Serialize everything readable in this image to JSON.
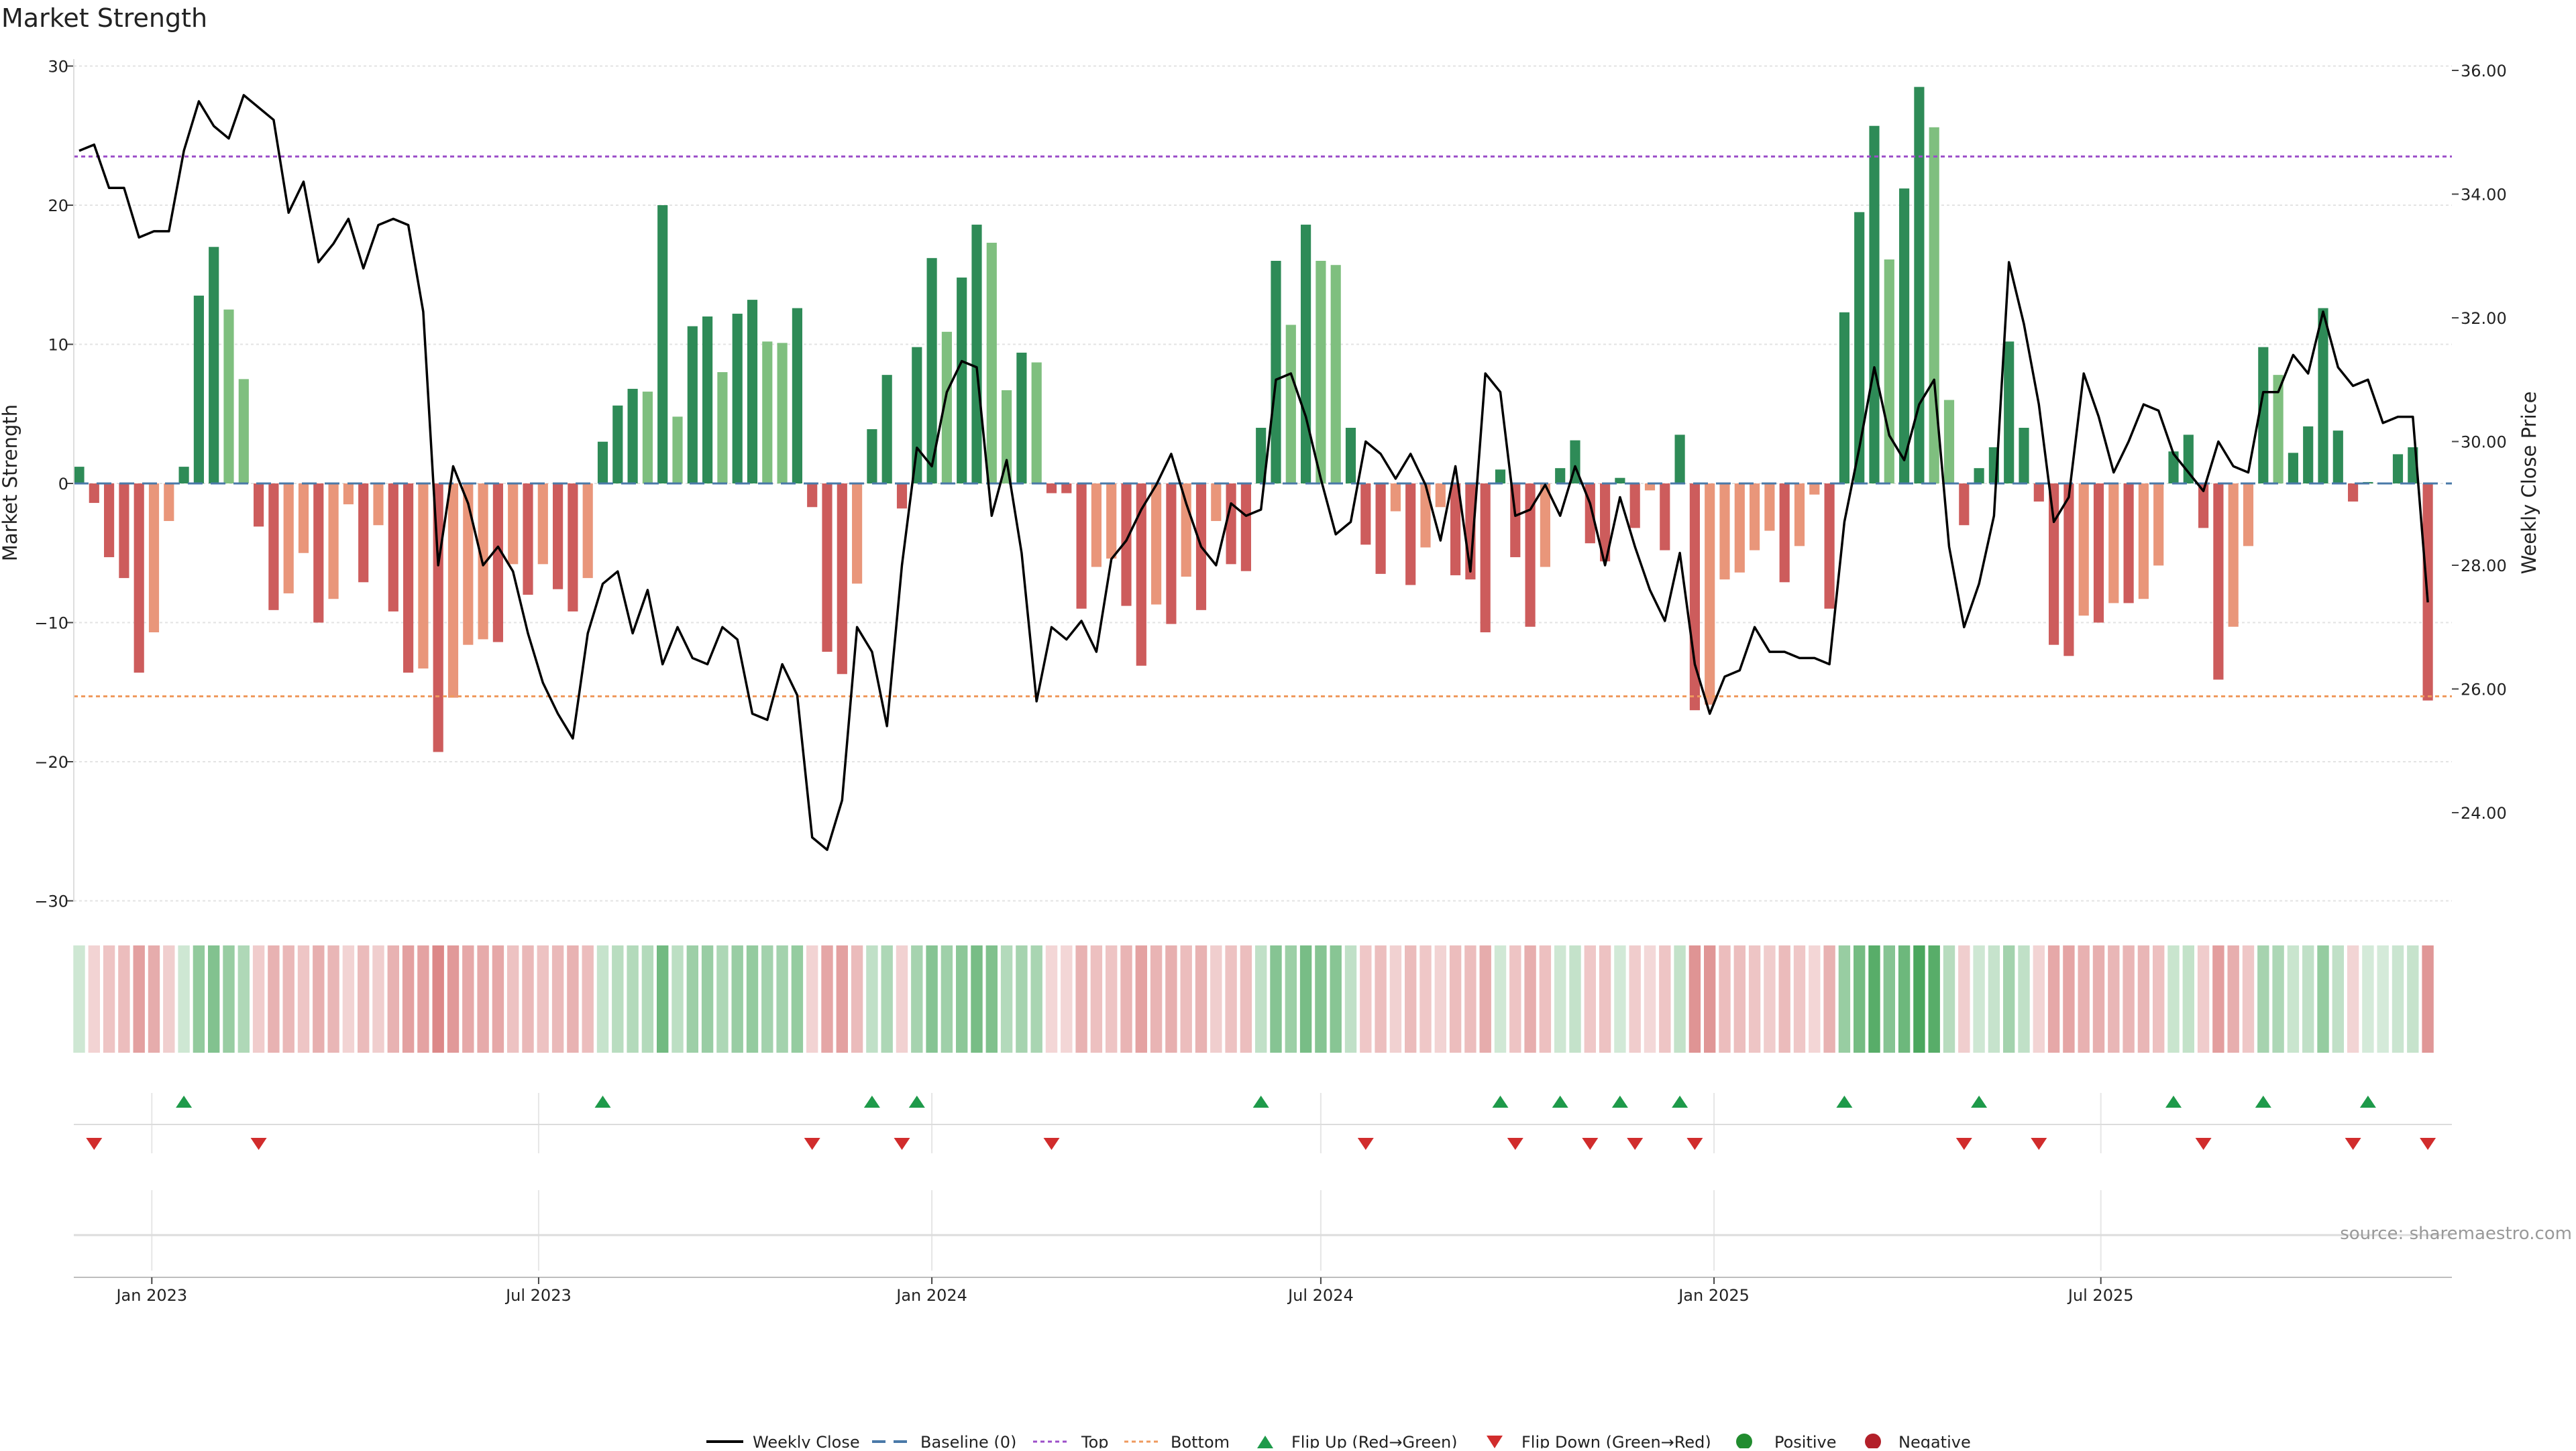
{
  "chart_data": {
    "type": "bar",
    "title": "Market Strength",
    "ylabel_left": "Market Strength",
    "ylabel_right": "Weekly Close Price",
    "y_left_lim": [
      -30,
      30
    ],
    "y_left_ticks": [
      "30",
      "20",
      "10",
      "0",
      "−10",
      "−20",
      "−30"
    ],
    "y_right_lim": [
      22.6,
      36.0
    ],
    "y_right_ticks": [
      "36.00",
      "34.00",
      "32.00",
      "30.00",
      "28.00",
      "26.00",
      "24.00"
    ],
    "x_ticks": [
      "Jan 2023",
      "Jul 2023",
      "Jan 2024",
      "Jul 2024",
      "Jan 2025",
      "Jul 2025"
    ],
    "x_start": "2022-11-28",
    "week_days": 7,
    "top_threshold": 23.5,
    "bottom_threshold": -15.3,
    "grid": true,
    "legend_position": "bottom-center",
    "legend": [
      "Weekly Close",
      "Baseline (0)",
      "Top",
      "Bottom",
      "Flip Up (Red→Green)",
      "Flip Down (Green→Red)",
      "Positive",
      "Negative"
    ],
    "source": "source: sharemaestro.com",
    "series": [
      {
        "name": "Market Strength",
        "type": "bar",
        "values": [
          1.2,
          -1.4,
          -5.3,
          -6.8,
          -13.6,
          -10.7,
          -2.7,
          1.2,
          13.5,
          17.0,
          12.5,
          7.5,
          -3.1,
          -9.1,
          -7.9,
          -5.0,
          -10.0,
          -8.3,
          -1.5,
          -7.1,
          -3.0,
          -9.2,
          -13.6,
          -13.3,
          -19.3,
          -15.4,
          -11.6,
          -11.2,
          -11.4,
          -5.8,
          -8.0,
          -5.8,
          -7.6,
          -9.2,
          -6.8,
          3.0,
          5.6,
          6.8,
          6.6,
          20.0,
          4.8,
          11.3,
          12.0,
          8.0,
          12.2,
          13.2,
          10.2,
          10.1,
          12.6,
          -1.7,
          -12.1,
          -13.7,
          -7.2,
          3.9,
          7.8,
          -1.8,
          9.8,
          16.2,
          10.9,
          14.8,
          18.6,
          17.3,
          6.7,
          9.4,
          8.7,
          -0.7,
          -0.7,
          -9.0,
          -6.0,
          -5.4,
          -8.8,
          -13.1,
          -8.7,
          -10.1,
          -6.7,
          -9.1,
          -2.7,
          -5.8,
          -6.3,
          4.0,
          16.0,
          11.4,
          18.6,
          16.0,
          15.7,
          4.0,
          -4.4,
          -6.5,
          -2.0,
          -7.3,
          -4.6,
          -1.7,
          -6.6,
          -6.9,
          -10.7,
          1.0,
          -5.3,
          -10.3,
          -6.0,
          1.1,
          3.1,
          -4.3,
          -5.6,
          0.4,
          -3.2,
          -0.5,
          -4.8,
          3.5,
          -16.3,
          -15.9,
          -6.9,
          -6.4,
          -4.8,
          -3.4,
          -7.1,
          -4.5,
          -0.8,
          -9.0,
          12.3,
          19.5,
          25.7,
          16.1,
          21.2,
          28.5,
          25.6,
          6.0,
          -3.0,
          1.1,
          2.6,
          10.2,
          4.0,
          -1.3,
          -11.6,
          -12.4,
          -9.5,
          -10.0,
          -8.6,
          -8.6,
          -8.3,
          -5.9,
          2.3,
          3.5,
          -3.2,
          -14.1,
          -10.3,
          -4.5,
          9.8,
          7.8,
          2.2,
          4.1,
          12.6,
          3.8,
          -1.3,
          0.1,
          0.0,
          2.1,
          2.6,
          -15.6
        ]
      },
      {
        "name": "Weekly Close",
        "type": "line",
        "values": [
          34.7,
          34.8,
          34.1,
          34.1,
          33.3,
          33.4,
          33.4,
          34.7,
          35.5,
          35.1,
          34.9,
          35.6,
          35.4,
          35.2,
          33.7,
          34.2,
          32.9,
          33.2,
          33.6,
          32.8,
          33.5,
          33.6,
          33.5,
          32.1,
          28.0,
          29.6,
          29.0,
          28.0,
          28.3,
          27.9,
          26.9,
          26.1,
          25.6,
          25.2,
          26.9,
          27.7,
          27.9,
          26.9,
          27.6,
          26.4,
          27.0,
          26.5,
          26.4,
          27.0,
          26.8,
          25.6,
          25.5,
          26.4,
          25.9,
          23.6,
          23.4,
          24.2,
          27.0,
          26.6,
          25.4,
          28.0,
          29.9,
          29.6,
          30.8,
          31.3,
          31.2,
          28.8,
          29.7,
          28.2,
          25.8,
          27.0,
          26.8,
          27.1,
          26.6,
          28.1,
          28.4,
          28.9,
          29.3,
          29.8,
          29.0,
          28.3,
          28.0,
          29.0,
          28.8,
          28.9,
          31.0,
          31.1,
          30.4,
          29.4,
          28.5,
          28.7,
          30.0,
          29.8,
          29.4,
          29.8,
          29.3,
          28.4,
          29.6,
          27.9,
          31.1,
          30.8,
          28.8,
          28.9,
          29.3,
          28.8,
          29.6,
          29.0,
          28.0,
          29.1,
          28.3,
          27.6,
          27.1,
          28.2,
          26.4,
          25.6,
          26.2,
          26.3,
          27.0,
          26.6,
          26.6,
          26.5,
          26.5,
          26.4,
          28.7,
          29.9,
          31.2,
          30.1,
          29.7,
          30.6,
          31.0,
          28.3,
          27.0,
          27.7,
          28.8,
          32.9,
          31.9,
          30.6,
          28.7,
          29.1,
          31.1,
          30.4,
          29.5,
          30.0,
          30.6,
          30.5,
          29.8,
          29.5,
          29.2,
          30.0,
          29.6,
          29.5,
          30.8,
          30.8,
          31.4,
          31.1,
          32.1,
          31.2,
          30.9,
          31.0,
          30.3,
          30.4,
          30.4,
          27.4
        ]
      }
    ]
  }
}
